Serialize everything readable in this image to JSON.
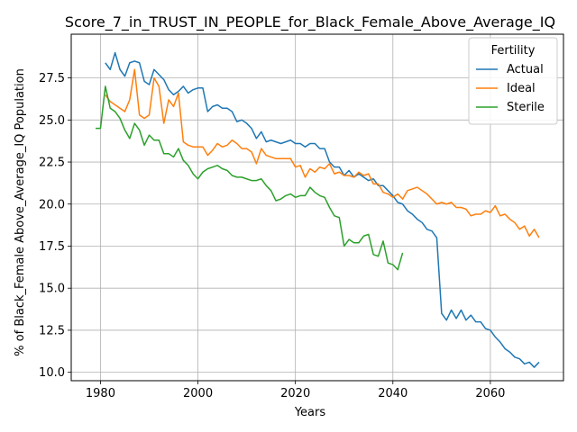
{
  "chart_data": {
    "type": "line",
    "title": "Score_7_in_TRUST_IN_PEOPLE_for_Black_Female_Above_Average_IQ",
    "xlabel": "Years",
    "ylabel": "% of Black_Female Above_Average_IQ Population",
    "xlim": [
      1974,
      2075
    ],
    "ylim": [
      9.5,
      30.1
    ],
    "xticks": [
      1980,
      2000,
      2020,
      2040,
      2060
    ],
    "yticks": [
      10.0,
      12.5,
      15.0,
      17.5,
      20.0,
      22.5,
      25.0,
      27.5
    ],
    "xtick_labels": [
      "1980",
      "2000",
      "2020",
      "2040",
      "2060"
    ],
    "ytick_labels": [
      "10.0",
      "12.5",
      "15.0",
      "17.5",
      "20.0",
      "22.5",
      "25.0",
      "27.5"
    ],
    "grid": true,
    "legend": {
      "title": "Fertility",
      "placement": "top-right"
    },
    "series": [
      {
        "name": "Actual",
        "color": "#1f77b4",
        "x": [
          1981,
          1982,
          1983,
          1984,
          1985,
          1986,
          1987,
          1988,
          1989,
          1990,
          1991,
          1992,
          1993,
          1994,
          1995,
          1996,
          1997,
          1998,
          1999,
          2000,
          2001,
          2002,
          2003,
          2004,
          2005,
          2006,
          2007,
          2008,
          2009,
          2010,
          2011,
          2012,
          2013,
          2014,
          2015,
          2016,
          2017,
          2018,
          2019,
          2020,
          2021,
          2022,
          2023,
          2024,
          2025,
          2026,
          2027,
          2028,
          2029,
          2030,
          2031,
          2032,
          2033,
          2034,
          2035,
          2036,
          2037,
          2038,
          2039,
          2040,
          2041,
          2042,
          2043,
          2044,
          2045,
          2046,
          2047,
          2048,
          2049,
          2050,
          2051,
          2052,
          2053,
          2054,
          2055,
          2056,
          2057,
          2058,
          2059,
          2060,
          2061,
          2062,
          2063,
          2064,
          2065,
          2066,
          2067,
          2068,
          2069,
          2070
        ],
        "y": [
          28.4,
          28.0,
          29.0,
          28.0,
          27.6,
          28.4,
          28.5,
          28.4,
          27.3,
          27.1,
          28.0,
          27.7,
          27.4,
          26.8,
          26.5,
          26.7,
          27.0,
          26.6,
          26.8,
          26.9,
          26.9,
          25.5,
          25.8,
          25.9,
          25.7,
          25.7,
          25.5,
          24.9,
          25.0,
          24.8,
          24.5,
          23.9,
          24.3,
          23.7,
          23.8,
          23.7,
          23.6,
          23.7,
          23.8,
          23.6,
          23.6,
          23.4,
          23.6,
          23.6,
          23.3,
          23.3,
          22.5,
          22.2,
          22.2,
          21.7,
          22.0,
          21.6,
          21.8,
          21.6,
          21.4,
          21.5,
          21.1,
          21.1,
          20.8,
          20.5,
          20.1,
          20.0,
          19.6,
          19.4,
          19.1,
          18.9,
          18.5,
          18.4,
          18.0,
          13.5,
          13.1,
          13.7,
          13.2,
          13.7,
          13.1,
          13.4,
          13.0,
          13.0,
          12.6,
          12.5,
          12.1,
          11.8,
          11.4,
          11.2,
          10.9,
          10.8,
          10.5,
          10.6,
          10.3,
          10.6
        ]
      },
      {
        "name": "Ideal",
        "color": "#ff7f0e",
        "x": [
          1981,
          1982,
          1983,
          1984,
          1985,
          1986,
          1987,
          1988,
          1989,
          1990,
          1991,
          1992,
          1993,
          1994,
          1995,
          1996,
          1997,
          1998,
          1999,
          2000,
          2001,
          2002,
          2003,
          2004,
          2005,
          2006,
          2007,
          2008,
          2009,
          2010,
          2011,
          2012,
          2013,
          2014,
          2015,
          2016,
          2017,
          2018,
          2019,
          2020,
          2021,
          2022,
          2023,
          2024,
          2025,
          2026,
          2027,
          2028,
          2029,
          2030,
          2031,
          2032,
          2033,
          2034,
          2035,
          2036,
          2037,
          2038,
          2039,
          2040,
          2041,
          2042,
          2043,
          2044,
          2045,
          2046,
          2047,
          2048,
          2049,
          2050,
          2051,
          2052,
          2053,
          2054,
          2055,
          2056,
          2057,
          2058,
          2059,
          2060,
          2061,
          2062,
          2063,
          2064,
          2065,
          2066,
          2067,
          2068,
          2069,
          2070
        ],
        "y": [
          26.5,
          26.1,
          25.9,
          25.7,
          25.5,
          26.2,
          28.0,
          25.3,
          25.1,
          25.3,
          27.5,
          27.0,
          24.8,
          26.2,
          25.8,
          26.6,
          23.7,
          23.5,
          23.4,
          23.4,
          23.4,
          22.9,
          23.2,
          23.6,
          23.4,
          23.5,
          23.8,
          23.6,
          23.3,
          23.3,
          23.1,
          22.4,
          23.3,
          22.9,
          22.8,
          22.7,
          22.7,
          22.7,
          22.7,
          22.2,
          22.3,
          21.6,
          22.1,
          21.9,
          22.2,
          22.1,
          22.4,
          21.8,
          21.9,
          21.7,
          21.7,
          21.6,
          21.9,
          21.7,
          21.8,
          21.2,
          21.2,
          20.7,
          20.6,
          20.4,
          20.6,
          20.3,
          20.8,
          20.9,
          21.0,
          20.8,
          20.6,
          20.3,
          20.0,
          20.1,
          20.0,
          20.1,
          19.8,
          19.8,
          19.7,
          19.3,
          19.4,
          19.4,
          19.6,
          19.5,
          19.9,
          19.3,
          19.4,
          19.1,
          18.9,
          18.5,
          18.7,
          18.1,
          18.5,
          18.0
        ]
      },
      {
        "name": "Sterile",
        "color": "#2ca02c",
        "x": [
          1979,
          1980,
          1981,
          1982,
          1983,
          1984,
          1985,
          1986,
          1987,
          1988,
          1989,
          1990,
          1991,
          1992,
          1993,
          1994,
          1995,
          1996,
          1997,
          1998,
          1999,
          2000,
          2001,
          2002,
          2003,
          2004,
          2005,
          2006,
          2007,
          2008,
          2009,
          2010,
          2011,
          2012,
          2013,
          2014,
          2015,
          2016,
          2017,
          2018,
          2019,
          2020,
          2021,
          2022,
          2023,
          2024,
          2025,
          2026,
          2027,
          2028,
          2029,
          2030,
          2031,
          2032,
          2033,
          2034,
          2035,
          2036,
          2037,
          2038,
          2039,
          2040,
          2041,
          2042
        ],
        "y": [
          24.5,
          24.5,
          27.0,
          25.7,
          25.5,
          25.1,
          24.4,
          23.9,
          24.8,
          24.4,
          23.5,
          24.1,
          23.8,
          23.8,
          23.0,
          23.0,
          22.8,
          23.3,
          22.6,
          22.3,
          21.8,
          21.5,
          21.9,
          22.1,
          22.2,
          22.3,
          22.1,
          22.0,
          21.7,
          21.6,
          21.6,
          21.5,
          21.4,
          21.4,
          21.5,
          21.1,
          20.8,
          20.2,
          20.3,
          20.5,
          20.6,
          20.4,
          20.5,
          20.5,
          21.0,
          20.7,
          20.5,
          20.4,
          19.8,
          19.3,
          19.2,
          17.5,
          17.9,
          17.7,
          17.7,
          18.1,
          18.2,
          17.0,
          16.9,
          17.8,
          16.5,
          16.4,
          16.1,
          17.1
        ]
      }
    ]
  }
}
